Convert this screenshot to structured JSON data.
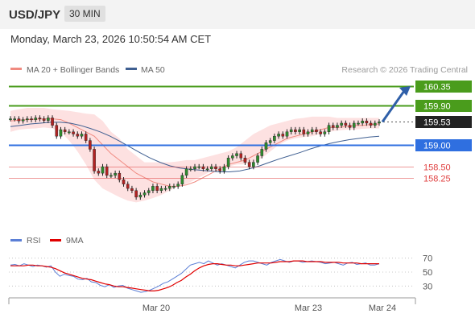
{
  "header": {
    "symbol": "USD/JPY",
    "timeframe": "30 MIN",
    "datetime": "Monday, March 23, 2026 10:50:54 AM CET"
  },
  "legend": {
    "ma20_label": "MA 20 + Bollinger Bands",
    "ma50_label": "MA 50",
    "ma20_color": "#f08a80",
    "ma50_color": "#3f5f91",
    "credit": "Research © 2026 Trading Central"
  },
  "rsi_legend": {
    "rsi_label": "RSI",
    "ma9_label": "9MA",
    "rsi_color": "#5b7fd6",
    "ma9_color": "#e00000"
  },
  "levels": [
    {
      "value": 160.35,
      "label": "160.35",
      "color": "#4a9c1c",
      "style": "solid-box"
    },
    {
      "value": 159.9,
      "label": "159.90",
      "color": "#4a9c1c",
      "style": "solid-box"
    },
    {
      "value": 159.53,
      "label": "159.53",
      "color": "#222222",
      "style": "dotted-box"
    },
    {
      "value": 159.0,
      "label": "159.00",
      "color": "#2f6fe0",
      "style": "solid-box"
    },
    {
      "value": 158.5,
      "label": "158.50",
      "color": "#e04040",
      "style": "thin-text"
    },
    {
      "value": 158.25,
      "label": "158.25",
      "color": "#e04040",
      "style": "thin-text"
    }
  ],
  "rsi_ticks": [
    "70",
    "50",
    "30"
  ],
  "x_labels": [
    "Mar 20",
    "Mar 23",
    "Mar 24"
  ],
  "chart_data": {
    "type": "line",
    "title": "USD/JPY 30 MIN",
    "ylim": [
      157.6,
      160.5
    ],
    "price": [
      159.6,
      159.6,
      159.55,
      159.58,
      159.6,
      159.58,
      159.62,
      159.6,
      159.56,
      159.62,
      159.45,
      159.2,
      159.35,
      159.3,
      159.3,
      159.25,
      159.2,
      159.25,
      159.1,
      158.9,
      158.4,
      158.35,
      158.5,
      158.3,
      158.3,
      158.35,
      158.2,
      158.1,
      158.0,
      157.95,
      157.8,
      157.85,
      157.9,
      157.95,
      158.05,
      157.95,
      158.0,
      158.0,
      158.05,
      158.05,
      158.1,
      158.3,
      158.45,
      158.45,
      158.5,
      158.5,
      158.45,
      158.45,
      158.5,
      158.45,
      158.4,
      158.5,
      158.7,
      158.75,
      158.8,
      158.7,
      158.6,
      158.5,
      158.6,
      158.75,
      158.9,
      159.05,
      159.1,
      159.2,
      159.25,
      159.2,
      159.3,
      159.35,
      159.3,
      159.35,
      159.25,
      159.3,
      159.35,
      159.3,
      159.25,
      159.3,
      159.45,
      159.4,
      159.45,
      159.5,
      159.45,
      159.4,
      159.5,
      159.5,
      159.55,
      159.5,
      159.45,
      159.5,
      159.53
    ],
    "ma20": [
      159.55,
      159.57,
      159.58,
      159.59,
      159.6,
      159.6,
      159.58,
      159.5,
      159.4,
      159.3,
      159.2,
      159.0,
      158.8,
      158.65,
      158.5,
      158.35,
      158.25,
      158.15,
      158.1,
      158.05,
      158.05,
      158.08,
      158.15,
      158.25,
      158.35,
      158.45,
      158.55,
      158.6,
      158.65,
      158.75,
      158.85,
      158.95,
      159.05,
      159.15,
      159.2,
      159.25,
      159.3,
      159.35,
      159.4,
      159.4,
      159.42,
      159.45,
      159.45,
      159.47,
      159.48
    ],
    "bb_upper": [
      159.78,
      159.82,
      159.85,
      159.85,
      159.85,
      159.82,
      159.8,
      159.78,
      159.75,
      159.72,
      159.7,
      159.55,
      159.3,
      159.15,
      158.9,
      158.75,
      158.6,
      158.6,
      158.6,
      158.6,
      158.62,
      158.65,
      158.65,
      158.7,
      158.75,
      158.8,
      158.85,
      158.95,
      159.1,
      159.25,
      159.35,
      159.45,
      159.5,
      159.55,
      159.6,
      159.62,
      159.65,
      159.65,
      159.65,
      159.62,
      159.62,
      159.62,
      159.62,
      159.62,
      159.62
    ],
    "bb_lower": [
      159.3,
      159.35,
      159.37,
      159.38,
      159.4,
      159.38,
      159.3,
      159.1,
      158.85,
      158.55,
      158.2,
      158.0,
      157.9,
      157.8,
      157.72,
      157.68,
      157.72,
      157.78,
      157.85,
      157.95,
      158.05,
      158.1,
      158.2,
      158.3,
      158.4,
      158.45,
      158.5,
      158.55,
      158.55,
      158.6,
      158.7,
      158.85,
      159.0,
      159.1,
      159.15,
      159.18,
      159.2,
      159.25,
      159.3,
      159.33,
      159.35,
      159.35,
      159.37,
      159.38,
      159.38
    ],
    "ma50": [
      159.42,
      159.45,
      159.48,
      159.5,
      159.52,
      159.52,
      159.5,
      159.45,
      159.38,
      159.3,
      159.2,
      159.08,
      158.95,
      158.82,
      158.7,
      158.6,
      158.52,
      158.47,
      158.44,
      158.42,
      158.4,
      158.38,
      158.38,
      158.4,
      158.45,
      158.52,
      158.6,
      158.68,
      158.75,
      158.82,
      158.9,
      158.97,
      159.03,
      159.08,
      159.12,
      159.15,
      159.18,
      159.2
    ],
    "rsi": [
      60,
      61,
      59,
      62,
      60,
      58,
      60,
      59,
      57,
      59,
      50,
      44,
      47,
      45,
      44,
      40,
      39,
      41,
      36,
      35,
      31,
      29,
      32,
      28,
      30,
      31,
      27,
      25,
      23,
      21,
      22,
      24,
      27,
      30,
      34,
      36,
      40,
      44,
      48,
      54,
      60,
      62,
      64,
      62,
      66,
      63,
      60,
      62,
      60,
      58,
      56,
      60,
      64,
      66,
      66,
      64,
      62,
      60,
      64,
      66,
      68,
      66,
      64,
      66,
      66,
      64,
      65,
      66,
      65,
      64,
      62,
      63,
      64,
      62,
      60,
      63,
      64,
      61,
      62,
      63,
      60,
      60,
      62
    ],
    "rsi_ma9": [
      59,
      59,
      59,
      59,
      60,
      60,
      59,
      59,
      58,
      57,
      55,
      52,
      49,
      47,
      45,
      43,
      41,
      40,
      39,
      37,
      35,
      33,
      32,
      30,
      29,
      29,
      28,
      27,
      26,
      25,
      24,
      23,
      23,
      24,
      26,
      28,
      31,
      35,
      38,
      43,
      47,
      52,
      56,
      59,
      61,
      62,
      62,
      61,
      60,
      60,
      59,
      59,
      60,
      61,
      62,
      63,
      63,
      63,
      63,
      64,
      65,
      65,
      65,
      66,
      66,
      66,
      65,
      65,
      65,
      65,
      64,
      64,
      64,
      64,
      63,
      63,
      63,
      63,
      62,
      62,
      62,
      62,
      62
    ],
    "rsi_ylim": [
      20,
      80
    ]
  }
}
